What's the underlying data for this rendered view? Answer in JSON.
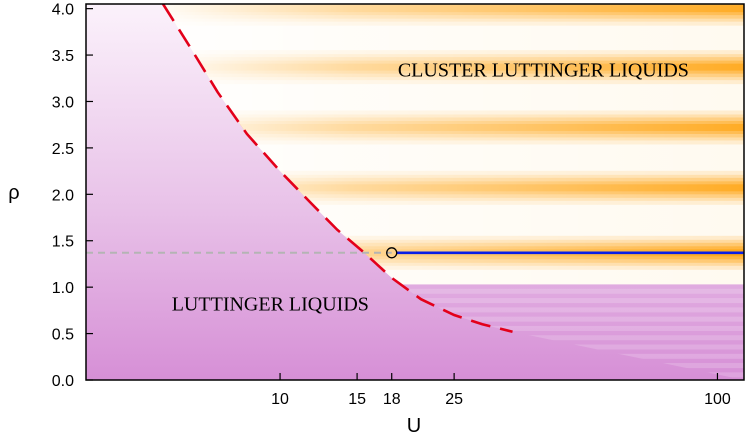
{
  "chart_data": {
    "type": "heatmap",
    "title": "",
    "xlabel": "U",
    "ylabel": "ρ",
    "x_scale": "log",
    "xlim": [
      3.6,
      115
    ],
    "ylim": [
      0,
      4.05
    ],
    "x_ticks": [
      {
        "value": 10,
        "label": "10"
      },
      {
        "value": 15,
        "label": "15"
      },
      {
        "value": 18,
        "label": "18"
      },
      {
        "value": 25,
        "label": "25"
      },
      {
        "value": 100,
        "label": "100"
      }
    ],
    "y_ticks": [
      {
        "value": 0.0,
        "label": "0.0"
      },
      {
        "value": 0.5,
        "label": "0.5"
      },
      {
        "value": 1.0,
        "label": "1.0"
      },
      {
        "value": 1.5,
        "label": "1.5"
      },
      {
        "value": 2.0,
        "label": "2.0"
      },
      {
        "value": 2.5,
        "label": "2.5"
      },
      {
        "value": 3.0,
        "label": "3.0"
      },
      {
        "value": 3.5,
        "label": "3.5"
      },
      {
        "value": 4.0,
        "label": "4.0"
      }
    ],
    "regions": [
      {
        "name": "LUTTINGER LIQUIDS",
        "color": "#d68fd6",
        "label_at": {
          "U": 9.5,
          "rho": 0.75
        }
      },
      {
        "name": "CLUSTER LUTTINGER LIQUIDS",
        "color": "#ff9e00",
        "label_at": {
          "U": 40,
          "rho": 3.27
        }
      }
    ],
    "series": [
      {
        "style": "red-dashed-boundary",
        "color": "#e3001a",
        "points": [
          [
            5.4,
            4.05
          ],
          [
            6.2,
            3.6
          ],
          [
            7.2,
            3.1
          ],
          [
            8.4,
            2.65
          ],
          [
            10.0,
            2.25
          ],
          [
            11.8,
            1.9
          ],
          [
            13.5,
            1.62
          ],
          [
            15.5,
            1.38
          ],
          [
            18.0,
            1.1
          ],
          [
            21.0,
            0.87
          ],
          [
            25.0,
            0.7
          ],
          [
            29.0,
            0.6
          ],
          [
            34.0,
            0.52
          ]
        ]
      },
      {
        "style": "blue-solid",
        "color": "#0a1ee6",
        "points": [
          [
            18.0,
            1.37
          ],
          [
            115,
            1.37
          ]
        ]
      },
      {
        "style": "gray-dashed-reference",
        "color": "#b4b4b4",
        "points": [
          [
            3.6,
            1.37
          ],
          [
            18.0,
            1.37
          ]
        ]
      }
    ],
    "markers": [
      {
        "type": "open-circle",
        "U": 18.0,
        "rho": 1.37,
        "color": "#000000"
      }
    ],
    "cluster_bands_rho": [
      1.37,
      2.07,
      2.72,
      3.37,
      4.0
    ],
    "cluster_lower_rho": 1.03,
    "grid": false,
    "legend": "none"
  }
}
